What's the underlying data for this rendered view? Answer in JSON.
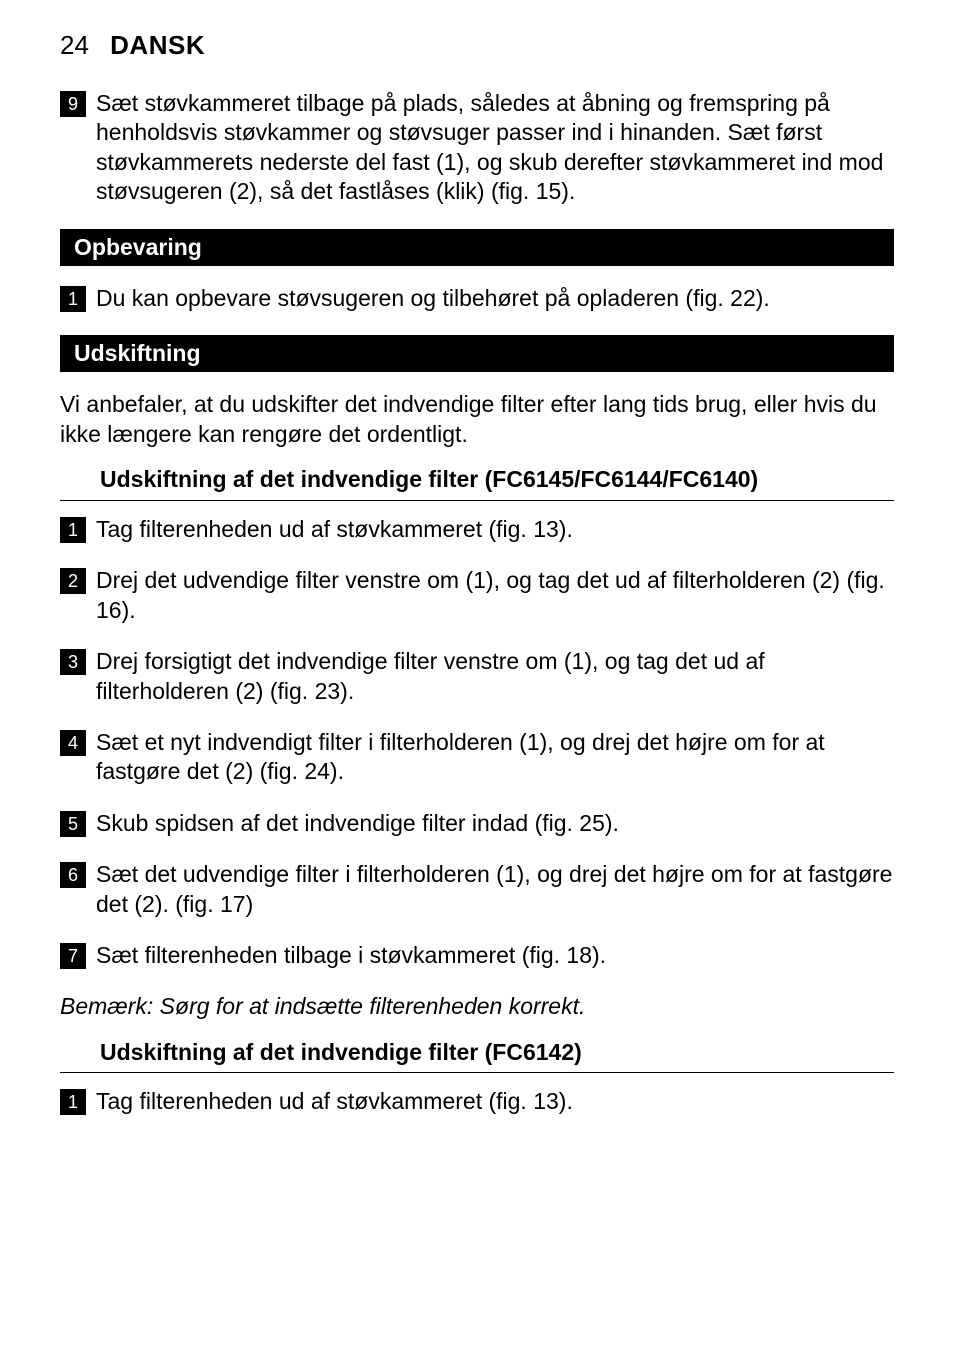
{
  "header": {
    "page_number": "24",
    "language": "DANSK"
  },
  "intro_steps": [
    {
      "num": "9",
      "text": "Sæt støvkammeret tilbage på plads, således at åbning og fremspring på henholdsvis støvkammer og støvsuger passer ind i hinanden. Sæt først støvkammerets nederste del fast (1), og skub derefter støvkammeret ind mod støvsugeren (2), så det fastlåses (klik) (fig. 15)."
    }
  ],
  "sections": [
    {
      "title": "Opbevaring",
      "steps": [
        {
          "num": "1",
          "text": "Du kan opbevare støvsugeren og tilbehøret på opladeren (fig. 22)."
        }
      ]
    },
    {
      "title": "Udskiftning",
      "intro": "Vi anbefaler, at du udskifter det indvendige filter efter lang tids brug, eller hvis du ikke længere kan rengøre det ordentligt.",
      "subsections": [
        {
          "heading": "Udskiftning af det indvendige filter (FC6145/FC6144/FC6140)",
          "steps": [
            {
              "num": "1",
              "text": "Tag filterenheden ud af støvkammeret (fig. 13)."
            },
            {
              "num": "2",
              "text": "Drej det udvendige filter venstre om (1), og tag det ud af filterholderen (2) (fig. 16)."
            },
            {
              "num": "3",
              "text": "Drej forsigtigt det indvendige filter venstre om (1), og tag det ud af filterholderen (2) (fig. 23)."
            },
            {
              "num": "4",
              "text": "Sæt et nyt indvendigt filter i filterholderen (1), og drej det højre om for at fastgøre det (2) (fig. 24)."
            },
            {
              "num": "5",
              "text": "Skub spidsen af det indvendige filter indad (fig. 25)."
            },
            {
              "num": "6",
              "text": "Sæt det udvendige filter i filterholderen (1), og drej det højre om for at fastgøre det (2).  (fig. 17)"
            },
            {
              "num": "7",
              "text": "Sæt filterenheden tilbage i støvkammeret (fig. 18)."
            }
          ],
          "note": "Bemærk: Sørg for at indsætte filterenheden korrekt."
        },
        {
          "heading": "Udskiftning af det indvendige filter (FC6142)",
          "steps": [
            {
              "num": "1",
              "text": "Tag filterenheden ud af støvkammeret (fig. 13)."
            }
          ]
        }
      ]
    }
  ]
}
